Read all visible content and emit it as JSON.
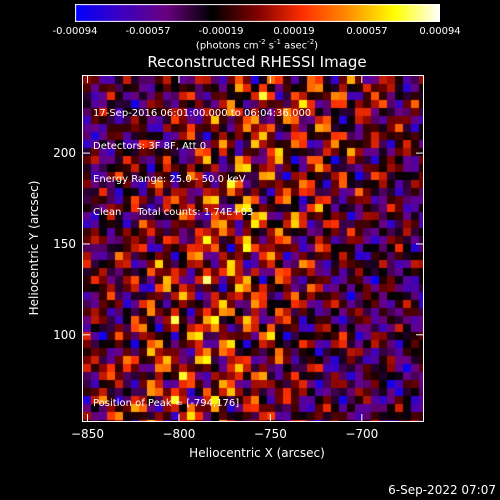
{
  "colorbar": {
    "ticks": [
      "-0.00094",
      "-0.00057",
      "-0.00019",
      "0.00019",
      "0.00057",
      "0.00094"
    ],
    "units_prefix": "(photons cm",
    "units_sup1": "-2",
    "units_mid": " s",
    "units_sup2": "-1",
    "units_mid2": " asec",
    "units_sup3": "-2",
    "units_suffix": ")",
    "colors": [
      "#0000ff",
      "#3b00c0",
      "#6a0080",
      "#000000",
      "#800000",
      "#ff3000",
      "#ff9000",
      "#ffff00",
      "#ffffff"
    ]
  },
  "chart_data": {
    "type": "heatmap",
    "title": "Reconstructed RHESSI Image",
    "xlabel": "Heliocentric X (arcsec)",
    "ylabel": "Heliocentric Y (arcsec)",
    "xlim": [
      -853,
      -666
    ],
    "ylim": [
      52,
      243
    ],
    "x_ticks": [
      -850,
      -800,
      -750,
      -700
    ],
    "y_ticks": [
      100,
      150,
      200
    ],
    "info_lines": [
      "17-Sep-2016 06:01:00.000 to 06:04:36.000",
      "Detectors: 3F 8F, Att 0",
      "Energy Range: 25.0 - 50.0 keV",
      "Clean     Total counts: 1.74E+03"
    ],
    "peak_label": "Position of Peak = [-794,176]",
    "peak": [
      -794,
      176
    ],
    "value_range": [
      -0.00094,
      0.00094
    ]
  },
  "footer": {
    "date": "6-Sep-2022 07:07"
  }
}
